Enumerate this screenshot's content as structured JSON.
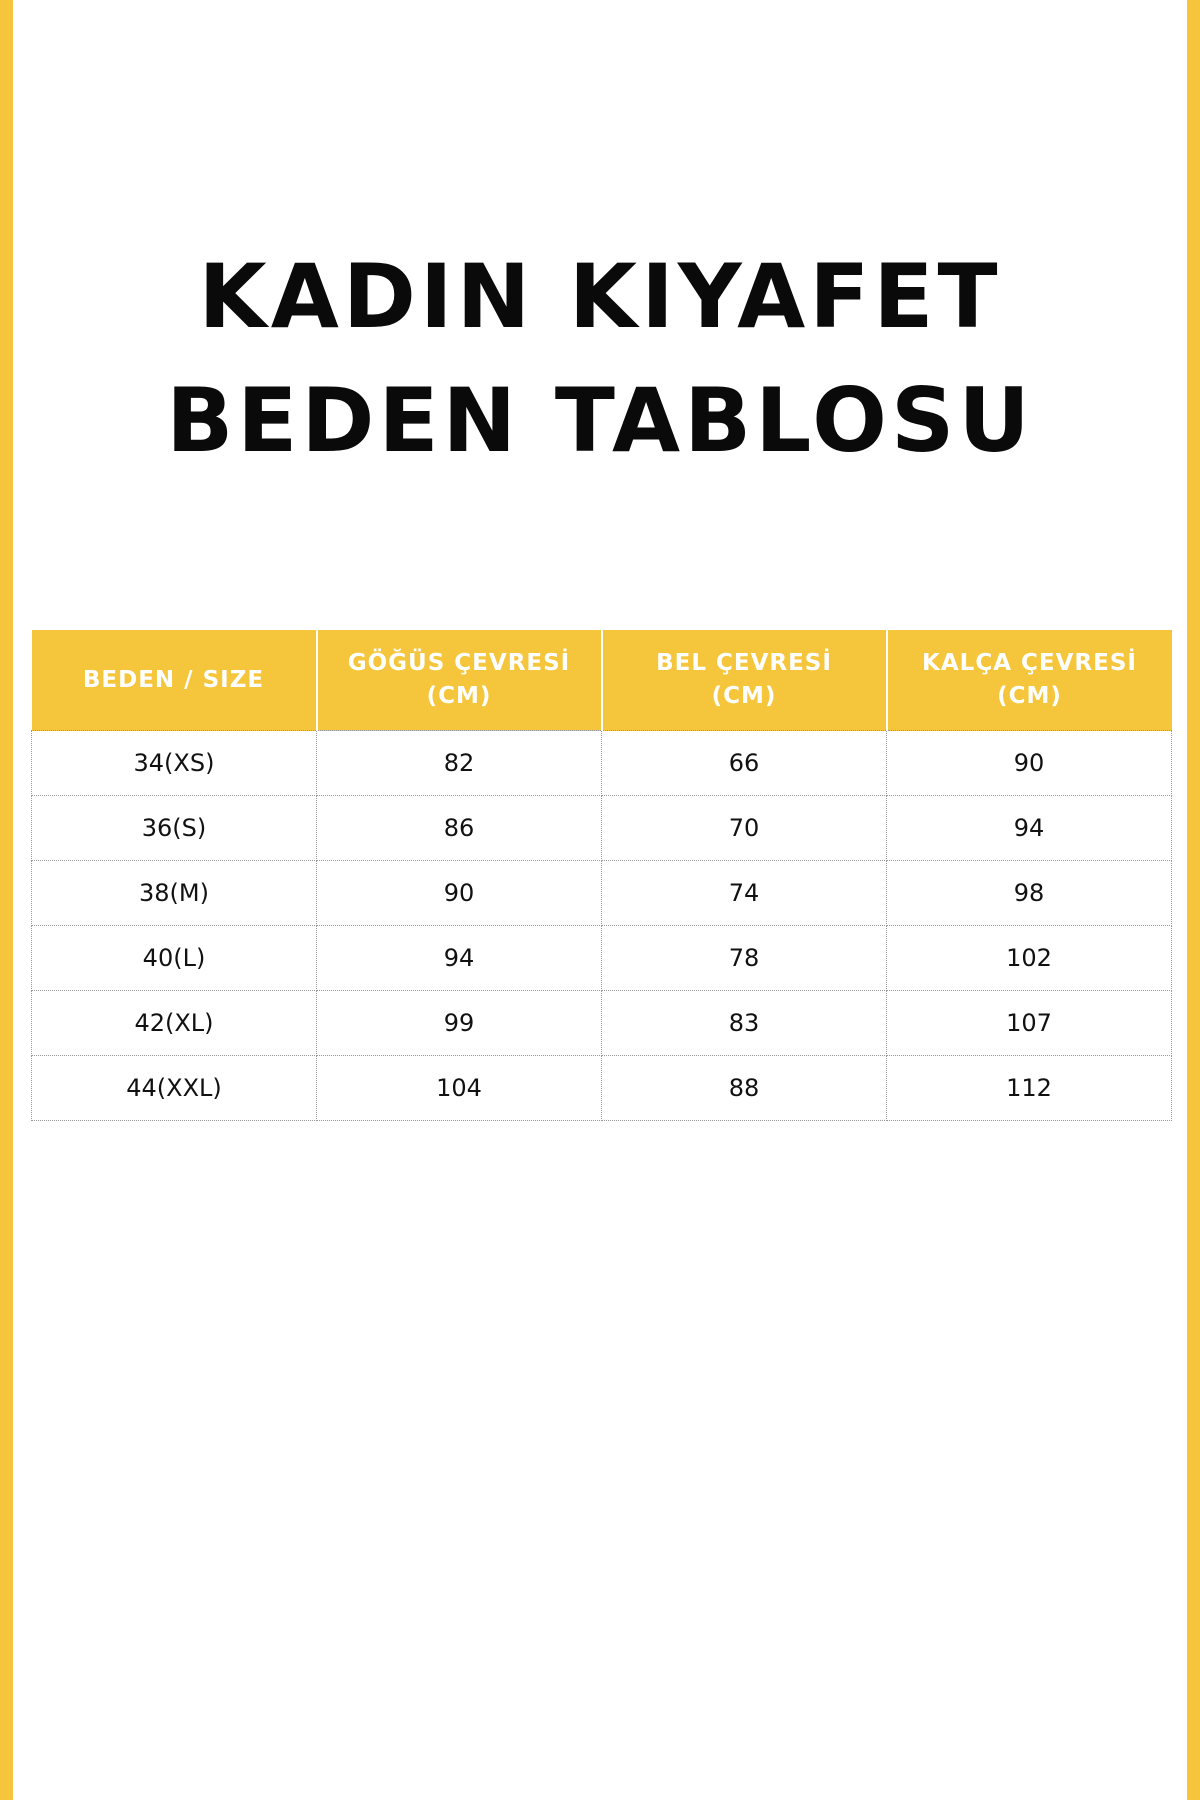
{
  "colors": {
    "accent": "#F5C63B"
  },
  "title": {
    "line1": "KADIN KIYAFET",
    "line2": "BEDEN TABLOSU"
  },
  "table": {
    "headers": [
      {
        "l1": "BEDEN / SIZE",
        "l2": ""
      },
      {
        "l1": "GÖĞÜS ÇEVRESİ",
        "l2": "(CM)"
      },
      {
        "l1": "BEL ÇEVRESİ",
        "l2": "(CM)"
      },
      {
        "l1": "KALÇA ÇEVRESİ",
        "l2": "(CM)"
      }
    ],
    "rows": [
      [
        "34(XS)",
        "82",
        "66",
        "90"
      ],
      [
        "36(S)",
        "86",
        "70",
        "94"
      ],
      [
        "38(M)",
        "90",
        "74",
        "98"
      ],
      [
        "40(L)",
        "94",
        "78",
        "102"
      ],
      [
        "42(XL)",
        "99",
        "83",
        "107"
      ],
      [
        "44(XXL)",
        "104",
        "88",
        "112"
      ]
    ]
  }
}
